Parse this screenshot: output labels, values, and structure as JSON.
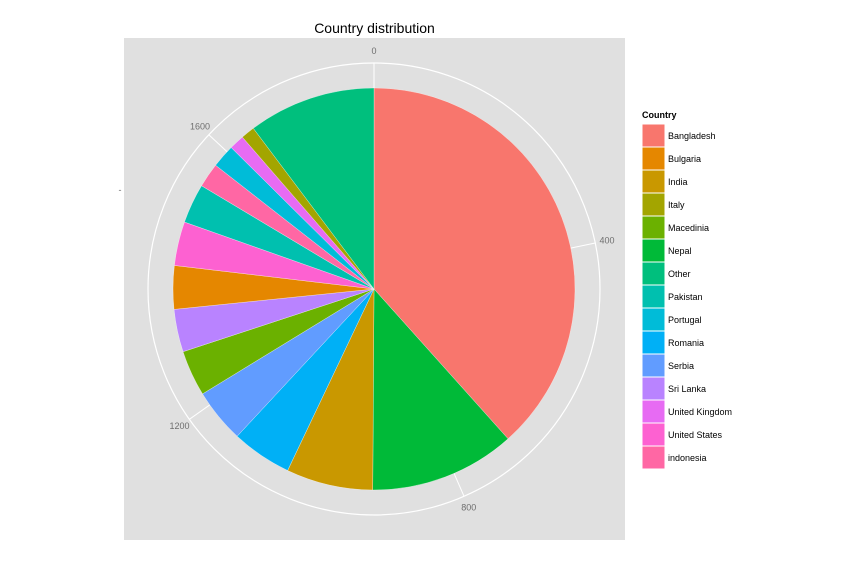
{
  "chart_data": {
    "type": "pie",
    "title": "Country distribution",
    "axis_ticks": [
      "0",
      "400",
      "800",
      "1200",
      "1600"
    ],
    "axis_tick_values": [
      0,
      400,
      800,
      1200,
      1600
    ],
    "axis_max": 1840,
    "y_axis_tick_label": "-",
    "legend": {
      "title": "Country",
      "position": "right"
    },
    "categories": [
      "Bangladesh",
      "Bulgaria",
      "India",
      "Italy",
      "Macedinia",
      "Nepal",
      "Other",
      "Pakistan",
      "Portugal",
      "Romania",
      "Serbia",
      "Sri Lanka",
      "United Kingdom",
      "United States",
      "indonesia"
    ],
    "colors": [
      "#F8766D",
      "#E58700",
      "#C99800",
      "#A3A500",
      "#6BB100",
      "#00BA38",
      "#00BF7D",
      "#00C0AF",
      "#00BCD8",
      "#00B0F6",
      "#619CFF",
      "#B983FF",
      "#E76BF3",
      "#FD61D1",
      "#FF67A4"
    ],
    "slices": [
      {
        "label": "Bangladesh",
        "value": 760
      },
      {
        "label": "Nepal",
        "value": 232
      },
      {
        "label": "India",
        "value": 138
      },
      {
        "label": "Romania",
        "value": 96
      },
      {
        "label": "Serbia",
        "value": 86
      },
      {
        "label": "Macedinia",
        "value": 73
      },
      {
        "label": "Sri Lanka",
        "value": 68
      },
      {
        "label": "Bulgaria",
        "value": 69
      },
      {
        "label": "United States",
        "value": 70
      },
      {
        "label": "Pakistan",
        "value": 63
      },
      {
        "label": "indonesia",
        "value": 39
      },
      {
        "label": "Portugal",
        "value": 37
      },
      {
        "label": "United Kingdom",
        "value": 24
      },
      {
        "label": "Italy",
        "value": 22
      },
      {
        "label": "Other",
        "value": 203
      }
    ]
  }
}
